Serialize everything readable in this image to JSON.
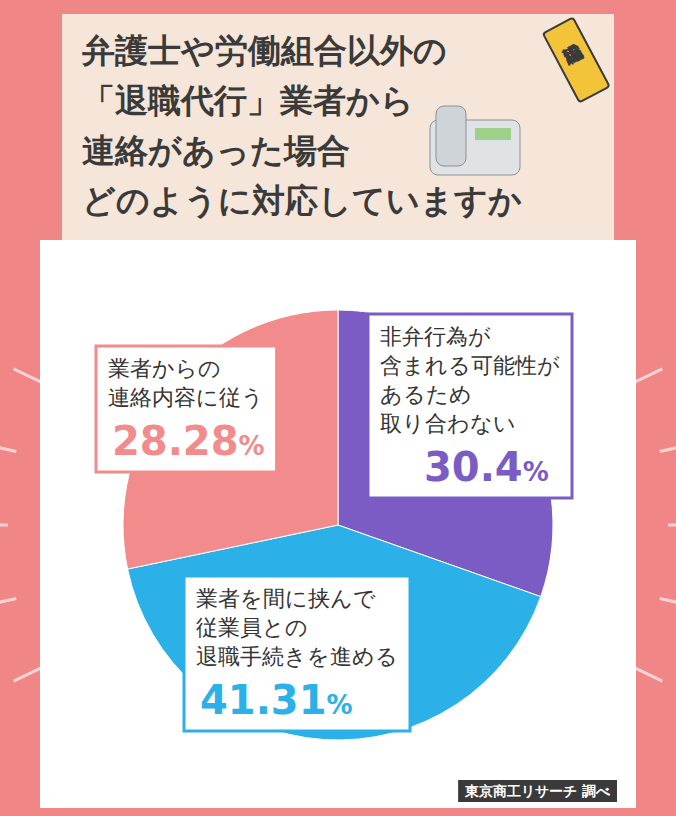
{
  "chart_data": {
    "type": "pie",
    "title": "弁護士や労働組合以外の\n「退職代行」業者から\n連絡があった場合\nどのように対応していますか",
    "annotations": [
      "退職編"
    ],
    "source": "東京商工リサーチ 調べ",
    "categories": [
      "非弁行為が\n含まれる可能性が\nあるため\n取り合わない",
      "業者を間に挟んで\n従業員との\n退職手続きを進める",
      "業者からの\n連絡内容に従う"
    ],
    "values": [
      30.4,
      41.31,
      28.28
    ],
    "value_labels": [
      "30.4%",
      "41.31%",
      "28.28%"
    ],
    "colors": [
      "#7b5cc4",
      "#2bb0e8",
      "#f28c8c"
    ],
    "data_labels": true
  }
}
